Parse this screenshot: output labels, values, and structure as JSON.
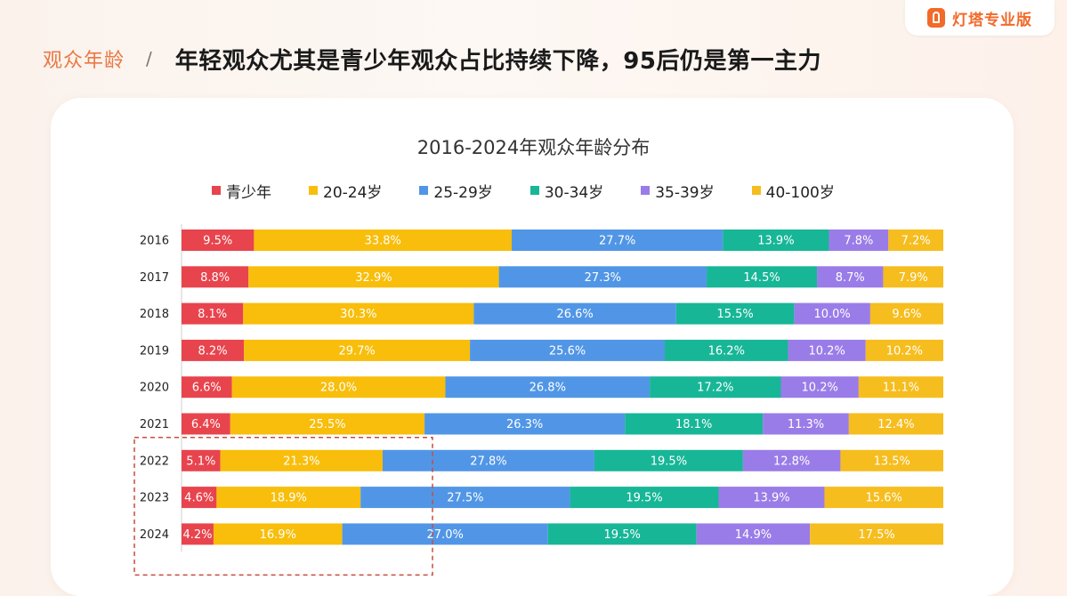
{
  "brand": {
    "text": "灯塔专业版"
  },
  "header": {
    "section": "观众年龄",
    "separator": "/",
    "headline": "年轻观众尤其是青少年观众占比持续下降，95后仍是第一主力"
  },
  "chart_data": {
    "type": "bar",
    "orientation": "horizontal",
    "stacked": true,
    "normalized": true,
    "title": "2016-2024年观众年龄分布",
    "legend_position": "top",
    "categories": [
      "2016",
      "2017",
      "2018",
      "2019",
      "2020",
      "2021",
      "2022",
      "2023",
      "2024"
    ],
    "series": [
      {
        "name": "青少年",
        "color": "#e8444d",
        "values": [
          9.5,
          8.8,
          8.1,
          8.2,
          6.6,
          6.4,
          5.1,
          4.6,
          4.2
        ]
      },
      {
        "name": "20-24岁",
        "color": "#f8be0b",
        "values": [
          33.8,
          32.9,
          30.3,
          29.7,
          28.0,
          25.5,
          21.3,
          18.9,
          16.9
        ]
      },
      {
        "name": "25-29岁",
        "color": "#5196e6",
        "values": [
          27.7,
          27.3,
          26.6,
          25.6,
          26.8,
          26.3,
          27.8,
          27.5,
          27.0
        ]
      },
      {
        "name": "30-34岁",
        "color": "#17b697",
        "values": [
          13.9,
          14.5,
          15.5,
          16.2,
          17.2,
          18.1,
          19.5,
          19.5,
          19.5
        ]
      },
      {
        "name": "35-39岁",
        "color": "#9a7ce8",
        "values": [
          7.8,
          8.7,
          10.0,
          10.2,
          10.2,
          11.3,
          12.8,
          13.9,
          14.9
        ]
      },
      {
        "name": "40-100岁",
        "color": "#f6bd1e",
        "values": [
          7.2,
          7.9,
          9.6,
          10.2,
          11.1,
          12.4,
          13.5,
          15.6,
          17.5
        ]
      }
    ],
    "highlight": {
      "categories": [
        "2022",
        "2023",
        "2024"
      ],
      "series": [
        "青少年",
        "20-24岁"
      ],
      "color": "#c94c3d"
    }
  }
}
